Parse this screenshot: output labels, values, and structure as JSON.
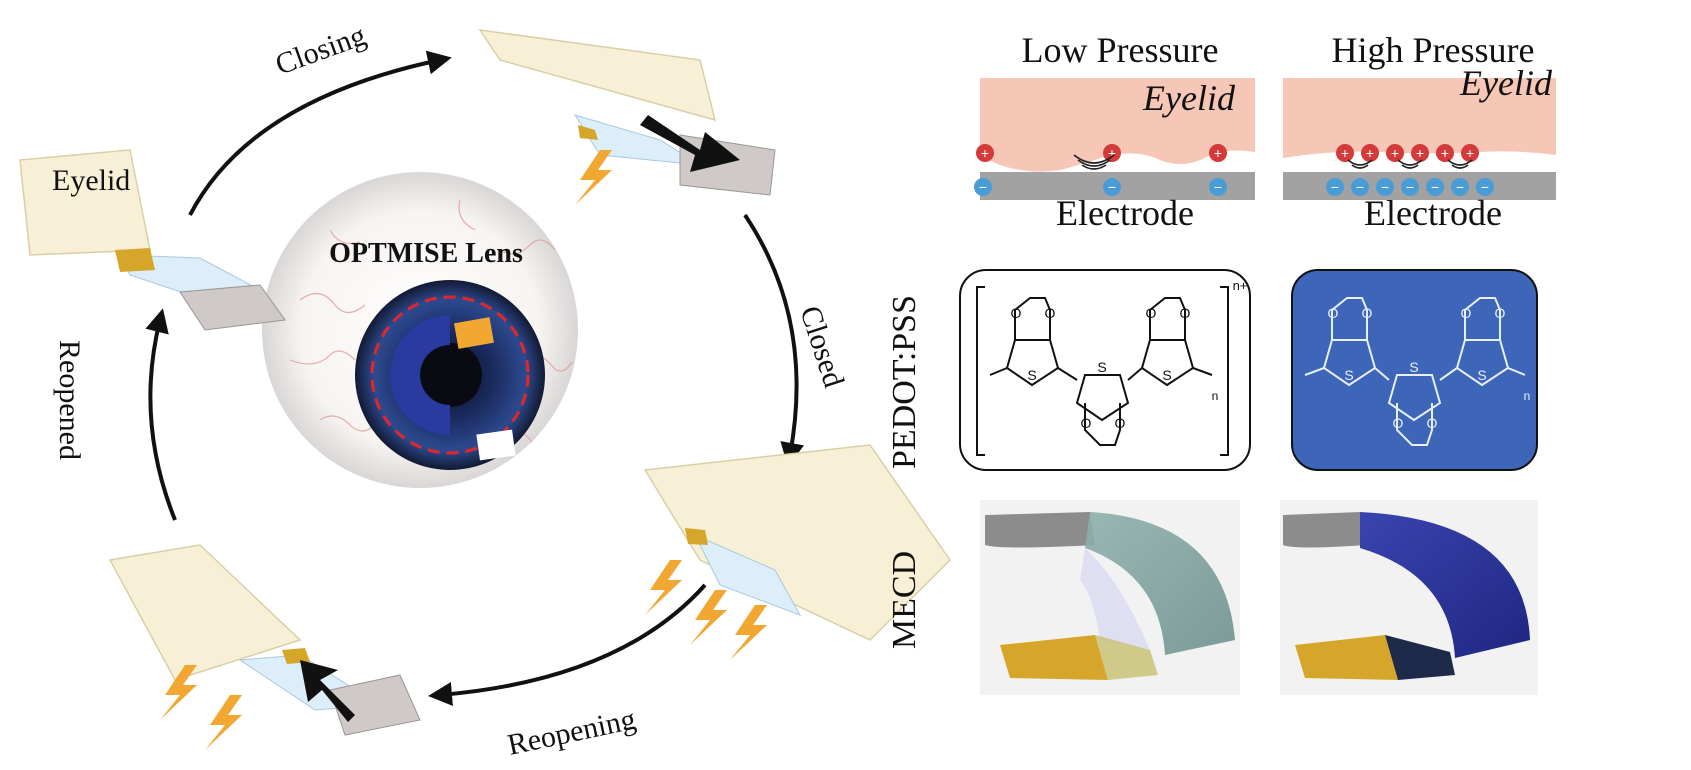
{
  "cycle": {
    "center_title": "OPTMISE Lens",
    "eyelid_label": "Eyelid",
    "stages": [
      "Closing",
      "Closed",
      "Reopening",
      "Reopened"
    ]
  },
  "pressure": {
    "low_title": "Low Pressure",
    "high_title": "High Pressure",
    "eyelid_label": "Eyelid",
    "electrode_label": "Electrode"
  },
  "rows": {
    "pedot_label": "PEDOT:PSS",
    "mecd_label": "MECD",
    "superscript": "n+",
    "subscript": "n",
    "atom_O": "O",
    "atom_S": "S"
  },
  "colors": {
    "eyelid": "#f6c6b6",
    "electrode": "#a2a2a2",
    "plus_ion": "#d33a3a",
    "minus_ion": "#4a9cd6",
    "pedot_bg_dark": "#3e66b8",
    "lens_ring_red": "#e3262b",
    "iris": "#1e2f6e",
    "gold": "#d6a62a",
    "lightning": "#f2a733",
    "lid": "#f7f0d7"
  },
  "icons": [
    "arrow-icon",
    "lightning-icon",
    "plus-ion-icon",
    "minus-ion-icon",
    "sound-wave-icon"
  ]
}
